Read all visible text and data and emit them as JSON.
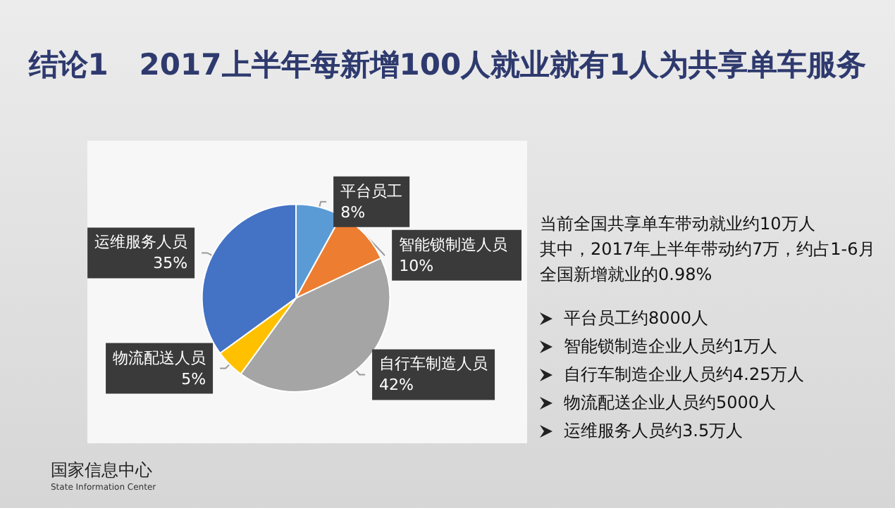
{
  "chart_data": {
    "type": "pie",
    "title": "结论1   2017上半年每新增100人就业就有1人为共享单车服务",
    "categories": [
      "平台员工",
      "智能锁制造人员",
      "自行车制造人员",
      "物流配送人员",
      "运维服务人员"
    ],
    "values": [
      8,
      10,
      42,
      5,
      35
    ],
    "colors": [
      "#5b9bd5",
      "#ed7d31",
      "#a5a5a5",
      "#ffc000",
      "#4472c4"
    ],
    "value_labels": [
      "8%",
      "10%",
      "42%",
      "5%",
      "35%"
    ],
    "legend": false,
    "annotations": [
      "当前全国共享单车带动就业约10万人",
      "其中，2017年上半年带动约7万，约占1-6月全国新增就业的0.98%",
      "平台员工约8000人",
      "智能锁制造企业人员约1万人",
      "自行车制造企业人员约4.25万人",
      "物流配送企业人员约5000人",
      "运维服务人员约3.5万人",
      "国家信息中心",
      "State Information Center"
    ]
  }
}
